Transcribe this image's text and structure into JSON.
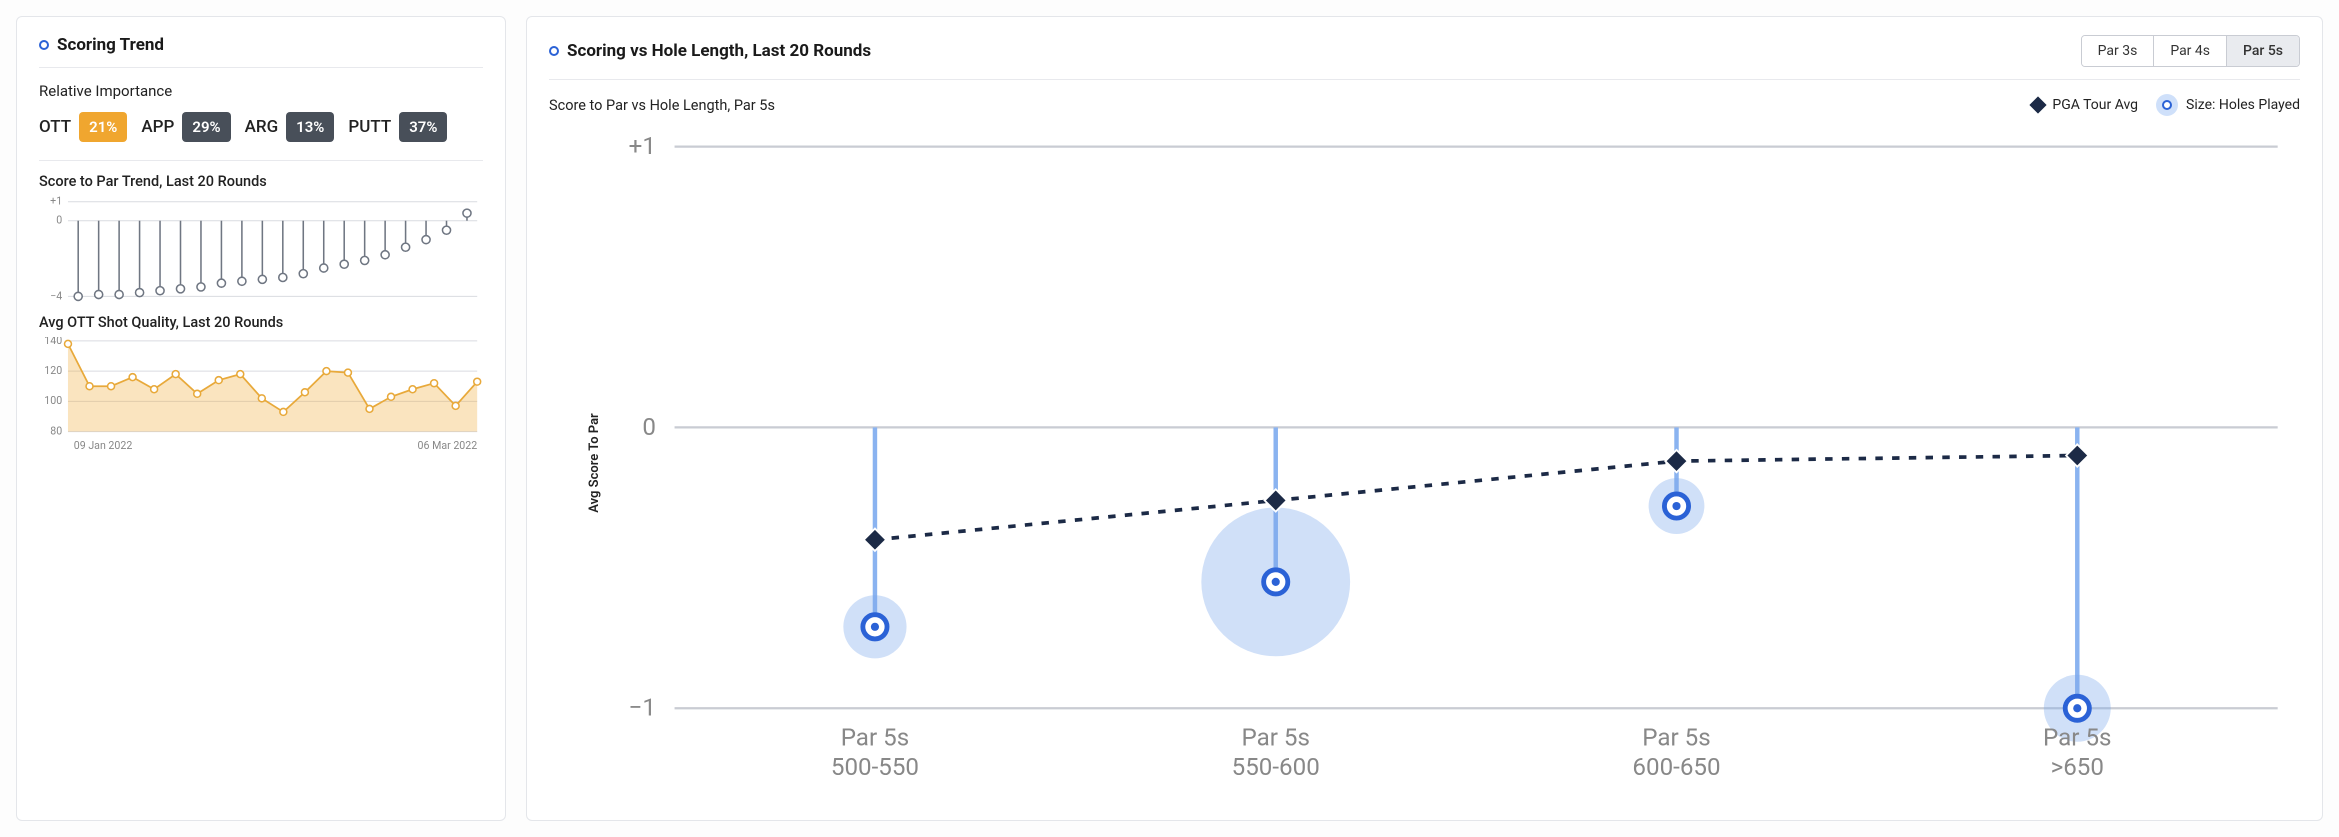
{
  "left_card": {
    "title": "Scoring Trend",
    "relative_importance_label": "Relative Importance",
    "importance": [
      {
        "label": "OTT",
        "value": "21%",
        "bg": "#f0a62f"
      },
      {
        "label": "APP",
        "value": "29%",
        "bg": "#484f59"
      },
      {
        "label": "ARG",
        "value": "13%",
        "bg": "#484f59"
      },
      {
        "label": "PUTT",
        "value": "37%",
        "bg": "#484f59"
      }
    ],
    "score_trend": {
      "title": "Score to Par Trend, Last 20 Rounds",
      "type": "lollipop",
      "ylim": [
        -4,
        1
      ],
      "yticks": [
        -4,
        0,
        1
      ],
      "values": [
        -4.0,
        -3.9,
        -3.9,
        -3.8,
        -3.7,
        -3.6,
        -3.5,
        -3.3,
        -3.2,
        -3.1,
        -3.0,
        -2.8,
        -2.5,
        -2.3,
        -2.1,
        -1.8,
        -1.4,
        -1.0,
        -0.5,
        0.4
      ],
      "line_color": "#6f7682",
      "marker_fill": "#ffffff",
      "marker_stroke": "#6f7682",
      "background": "#ffffff",
      "grid_color": "#d9dbe0"
    },
    "ott_quality": {
      "title": "Avg OTT Shot Quality, Last 20 Rounds",
      "type": "area",
      "ylim": [
        80,
        140
      ],
      "yticks": [
        80,
        100,
        120,
        140
      ],
      "values": [
        138,
        110,
        110,
        116,
        108,
        118,
        105,
        114,
        118,
        102,
        93,
        106,
        120,
        119,
        95,
        103,
        108,
        112,
        97,
        113
      ],
      "fill_color": "rgba(241,178,71,0.35)",
      "stroke_color": "#e8a93a",
      "marker_fill": "#ffffff",
      "marker_stroke": "#e8a93a",
      "x_start_label": "09 Jan 2022",
      "x_end_label": "06 Mar 2022",
      "grid_color": "#d9dbe0"
    }
  },
  "right_card": {
    "title": "Scoring vs Hole Length, Last 20 Rounds",
    "tabs": [
      {
        "label": "Par 3s",
        "active": false
      },
      {
        "label": "Par 4s",
        "active": false
      },
      {
        "label": "Par 5s",
        "active": true
      }
    ],
    "chart_title": "Score to Par vs Hole Length, Par 5s",
    "legend_pga": "PGA Tour Avg",
    "legend_size": "Size: Holes Played",
    "y_axis_label": "Avg Score To Par",
    "chart": {
      "type": "bubble-lollipop",
      "ylim": [
        -1,
        1
      ],
      "yticks": [
        -1,
        0,
        1
      ],
      "ytick_labels": [
        "−1",
        "0",
        "+1"
      ],
      "categories": [
        {
          "line1": "Par 5s",
          "line2": "500-550"
        },
        {
          "line1": "Par 5s",
          "line2": "550-600"
        },
        {
          "line1": "Par 5s",
          "line2": "600-650"
        },
        {
          "line1": "Par 5s",
          "line2": ">650"
        }
      ],
      "pga_values": [
        -0.4,
        -0.26,
        -0.12,
        -0.1
      ],
      "player_values": [
        -0.71,
        -0.55,
        -0.28,
        -1.0
      ],
      "bubble_radii": [
        17,
        40,
        15,
        18
      ],
      "stem_color": "#8ab3f0",
      "bubble_fill": "rgba(120,166,236,0.35)",
      "bubble_ring_stroke": "#2b62d6",
      "bubble_ring_fill": "#ffffff",
      "pga_line_color": "#1c2a46",
      "pga_dash": "4 5",
      "diamond_fill": "#1c2a46",
      "grid_color": "#c9ccd3",
      "axis_color": "#888888",
      "background": "#ffffff"
    }
  }
}
